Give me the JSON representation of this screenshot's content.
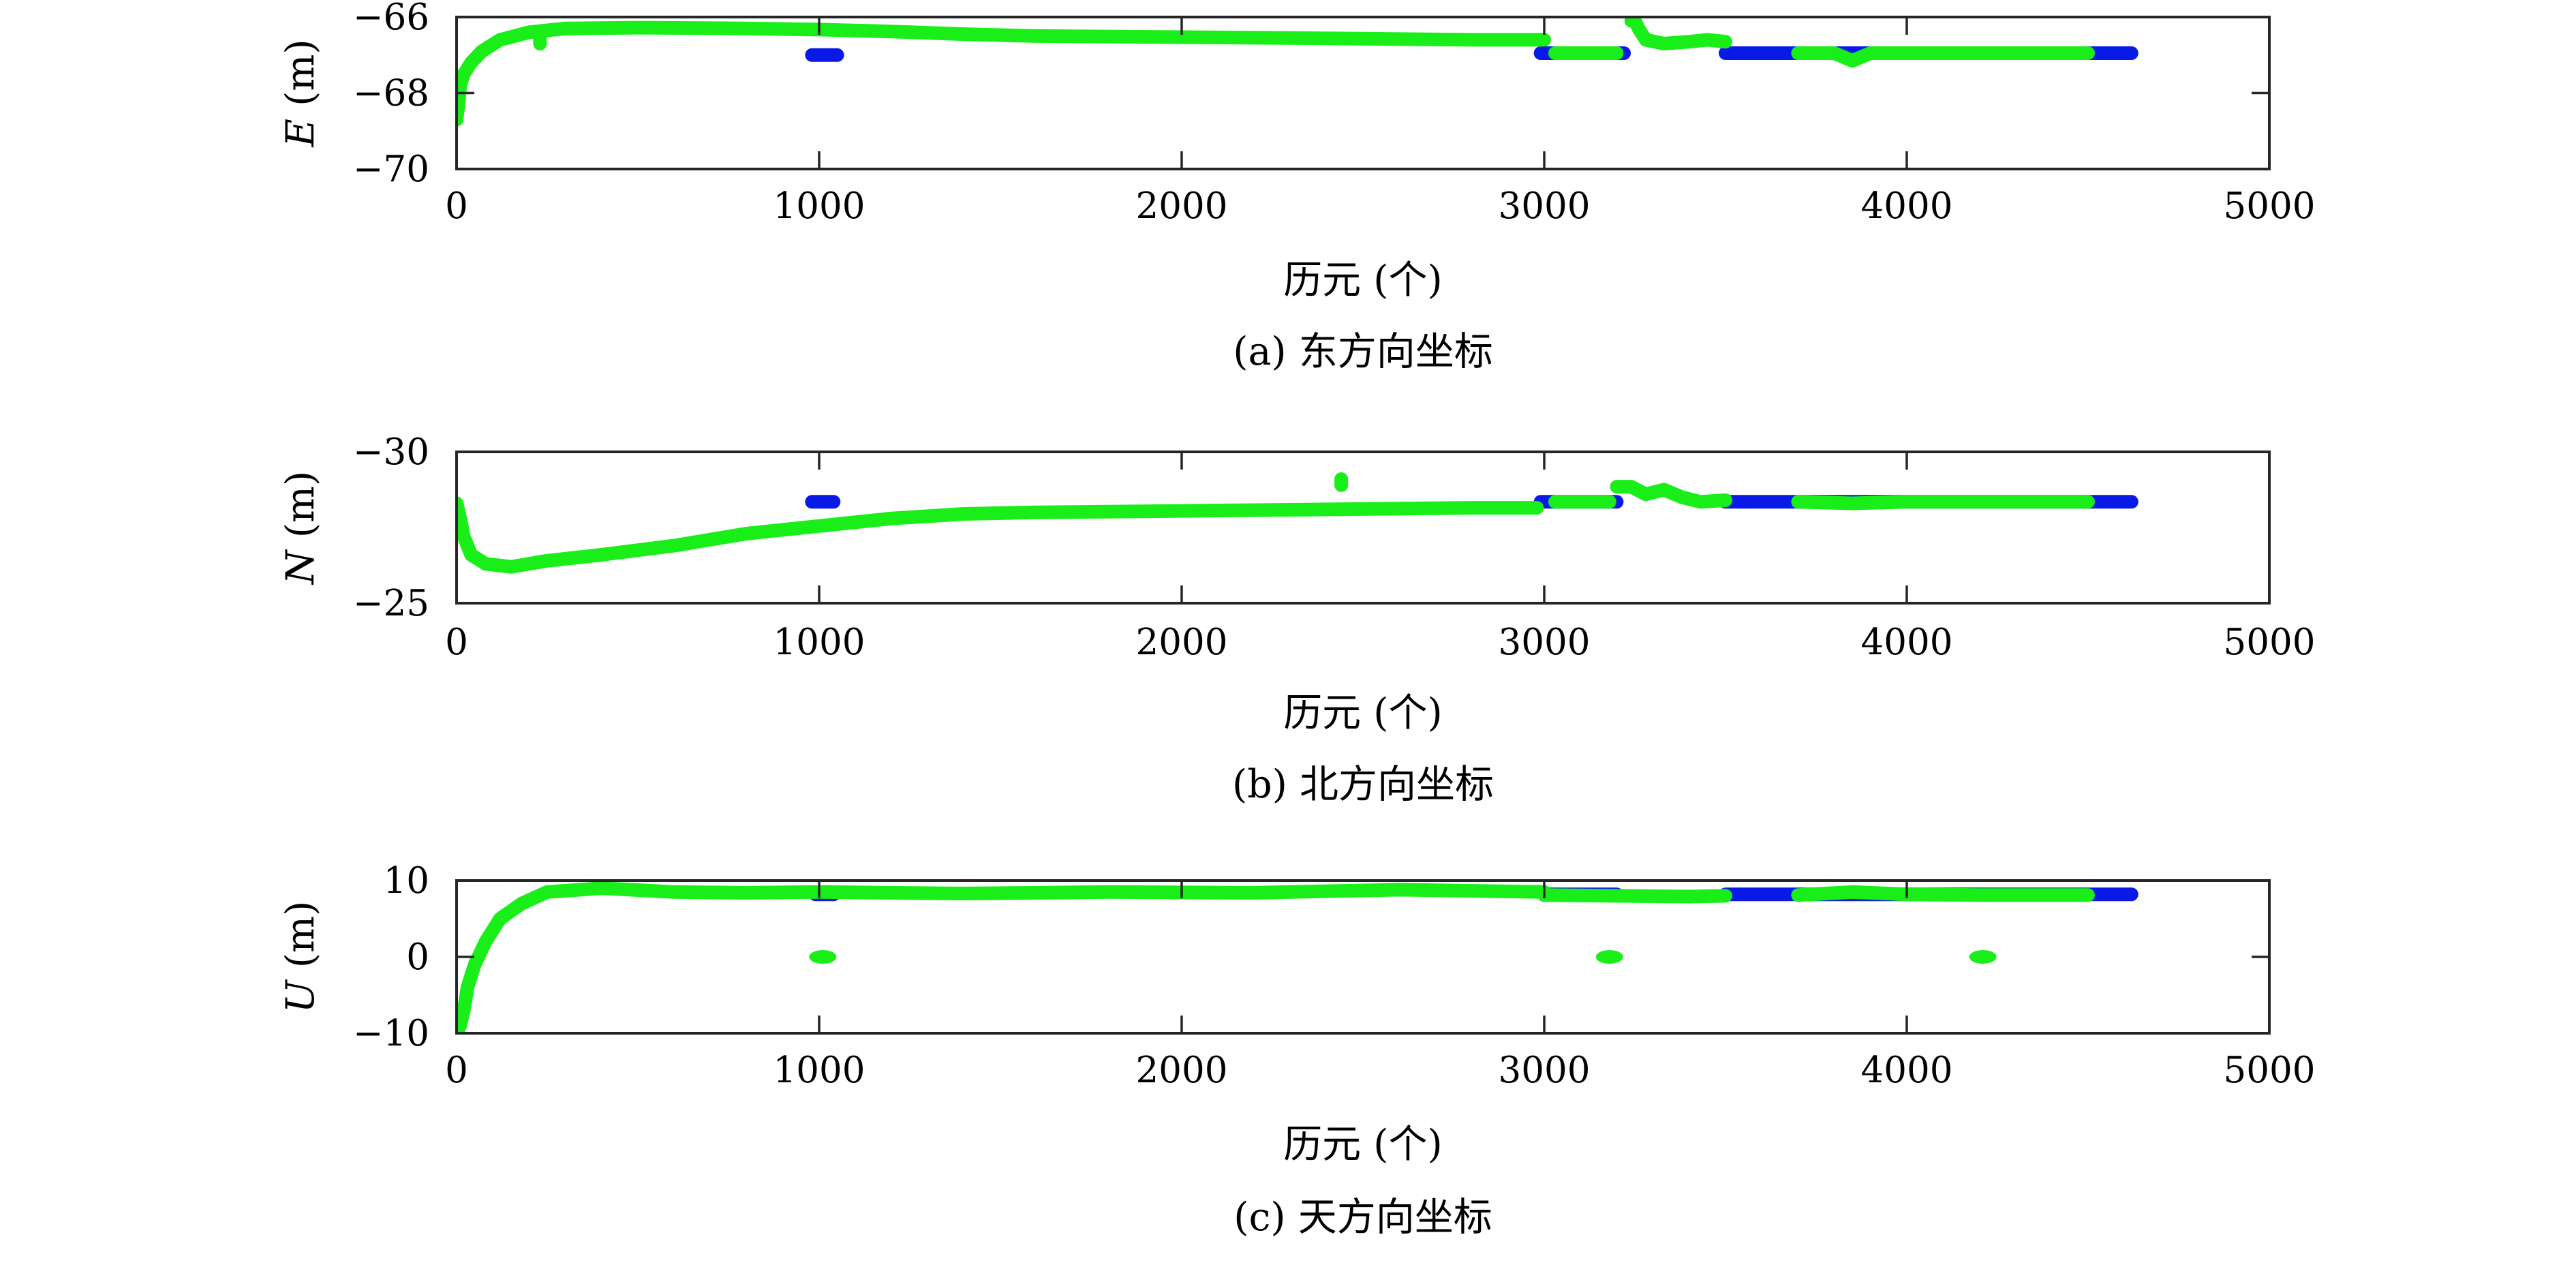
{
  "colors": {
    "series_blue": "#0a1ae6",
    "series_green": "#19ee19",
    "axis": "#262626",
    "text": "#000000",
    "background": "#ffffff"
  },
  "chart_data": [
    {
      "type": "scatter",
      "caption": "(a) 东方向坐标",
      "xlabel": "历元 (个)",
      "ylabel_var": "E",
      "ylabel_unit": " (m)",
      "xlim": [
        0,
        5000
      ],
      "ylim": [
        -70,
        -66
      ],
      "xticks": [
        0,
        1000,
        2000,
        3000,
        4000,
        5000
      ],
      "yticks": [
        -70,
        -68,
        -66
      ],
      "ytick_labels": [
        "−70",
        "−68",
        "−66"
      ],
      "grid": false,
      "series": [
        {
          "color": "blue",
          "segments": [
            {
              "x": [
                980,
                1050
              ],
              "y": [
                -67.0,
                -67.0
              ]
            },
            {
              "x": [
                2990,
                3220
              ],
              "y": [
                -66.95,
                -66.95
              ]
            },
            {
              "x": [
                3500,
                4620
              ],
              "y": [
                -66.95,
                -66.95
              ]
            }
          ]
        },
        {
          "color": "green",
          "segments": [
            {
              "x": [
                0,
                5,
                10,
                20,
                40,
                70,
                120,
                200,
                300,
                500,
                800,
                1000,
                1200,
                1400,
                1600,
                2000,
                2400,
                2800,
                3000
              ],
              "y": [
                -68.7,
                -68.3,
                -67.8,
                -67.5,
                -67.2,
                -66.9,
                -66.6,
                -66.4,
                -66.3,
                -66.28,
                -66.3,
                -66.33,
                -66.38,
                -66.45,
                -66.5,
                -66.53,
                -66.56,
                -66.6,
                -66.6
              ]
            },
            {
              "x": [
                3030,
                3080,
                3150,
                3200
              ],
              "y": [
                -66.95,
                -66.95,
                -66.95,
                -66.95
              ]
            },
            {
              "x": [
                3240,
                3250,
                3260,
                3280,
                3330,
                3400,
                3450,
                3500
              ],
              "y": [
                -66.1,
                -66.1,
                -66.3,
                -66.6,
                -66.7,
                -66.65,
                -66.6,
                -66.65
              ]
            },
            {
              "x": [
                3700,
                3800,
                3850,
                3900,
                4000,
                4100,
                4200,
                4300,
                4400,
                4500
              ],
              "y": [
                -66.95,
                -66.95,
                -67.15,
                -66.95,
                -66.95,
                -66.95,
                -66.95,
                -66.95,
                -66.95,
                -66.95
              ]
            },
            {
              "x": [
                230,
                230
              ],
              "y": [
                -66.4,
                -66.7
              ]
            }
          ]
        }
      ]
    },
    {
      "type": "scatter",
      "caption": "(b) 北方向坐标",
      "xlabel": "历元 (个)",
      "ylabel_var": "N",
      "ylabel_unit": " (m)",
      "xlim": [
        0,
        5000
      ],
      "ylim": [
        -25,
        -30
      ],
      "xticks": [
        0,
        1000,
        2000,
        3000,
        4000,
        5000
      ],
      "yticks": [
        -30,
        -25
      ],
      "ytick_labels": [
        "−30",
        "−25"
      ],
      "grid": false,
      "series": [
        {
          "color": "blue",
          "segments": [
            {
              "x": [
                980,
                1040
              ],
              "y": [
                -28.35,
                -28.35
              ]
            },
            {
              "x": [
                2990,
                3200
              ],
              "y": [
                -28.35,
                -28.35
              ]
            },
            {
              "x": [
                3500,
                4620
              ],
              "y": [
                -28.35,
                -28.35
              ]
            }
          ]
        },
        {
          "color": "green",
          "segments": [
            {
              "x": [
                0,
                10,
                20,
                40,
                80,
                150,
                250,
                400,
                600,
                800,
                1000,
                1200,
                1400,
                1600,
                2000,
                2400,
                2800,
                2980
              ],
              "y": [
                -28.3,
                -27.8,
                -27.2,
                -26.6,
                -26.3,
                -26.2,
                -26.4,
                -26.6,
                -26.9,
                -27.3,
                -27.55,
                -27.8,
                -27.95,
                -28.0,
                -28.05,
                -28.1,
                -28.15,
                -28.15
              ]
            },
            {
              "x": [
                3030,
                3100,
                3180
              ],
              "y": [
                -28.35,
                -28.35,
                -28.35
              ]
            },
            {
              "x": [
                3200,
                3240,
                3280,
                3330,
                3380,
                3430,
                3500
              ],
              "y": [
                -28.85,
                -28.85,
                -28.6,
                -28.75,
                -28.5,
                -28.35,
                -28.4
              ]
            },
            {
              "x": [
                2440,
                2440
              ],
              "y": [
                -28.9,
                -29.1
              ]
            },
            {
              "x": [
                3700,
                3850,
                4000,
                4200,
                4400,
                4500
              ],
              "y": [
                -28.35,
                -28.3,
                -28.35,
                -28.35,
                -28.35,
                -28.35
              ]
            }
          ]
        }
      ]
    },
    {
      "type": "scatter",
      "caption": "(c) 天方向坐标",
      "xlabel": "历元 (个)",
      "ylabel_var": "U",
      "ylabel_unit": " (m)",
      "xlim": [
        0,
        5000
      ],
      "ylim": [
        -10,
        10
      ],
      "xticks": [
        0,
        1000,
        2000,
        3000,
        4000,
        5000
      ],
      "yticks": [
        -10,
        0,
        10
      ],
      "ytick_labels": [
        "−10",
        "0",
        "10"
      ],
      "grid": false,
      "series": [
        {
          "color": "blue",
          "segments": [
            {
              "x": [
                990,
                1040
              ],
              "y": [
                8.2,
                8.2
              ]
            },
            {
              "x": [
                3000,
                3200
              ],
              "y": [
                8.2,
                8.2
              ]
            },
            {
              "x": [
                3500,
                4620
              ],
              "y": [
                8.2,
                8.2
              ]
            }
          ]
        },
        {
          "color": "green",
          "segments": [
            {
              "x": [
                0,
                10,
                20,
                30,
                50,
                80,
                120,
                180,
                250,
                400,
                600,
                800,
                1000,
                1400,
                1800,
                2200,
                2600,
                3000
              ],
              "y": [
                -10,
                -9,
                -7,
                -4,
                -1,
                2,
                5,
                7,
                8.5,
                9,
                8.5,
                8.4,
                8.5,
                8.3,
                8.5,
                8.4,
                8.8,
                8.5
              ]
            },
            {
              "x": [
                3000,
                3200,
                3400,
                3500
              ],
              "y": [
                8.1,
                8.0,
                7.9,
                8.0
              ]
            },
            {
              "x": [
                1010,
                1010
              ],
              "y": [
                0,
                0
              ]
            },
            {
              "x": [
                3180,
                3180
              ],
              "y": [
                0,
                0
              ]
            },
            {
              "x": [
                4210,
                4210
              ],
              "y": [
                0,
                0
              ]
            },
            {
              "x": [
                3700,
                3850,
                4000,
                4200,
                4400,
                4500
              ],
              "y": [
                8.1,
                8.5,
                8.2,
                8.1,
                8.1,
                8.1
              ]
            }
          ]
        }
      ]
    }
  ]
}
